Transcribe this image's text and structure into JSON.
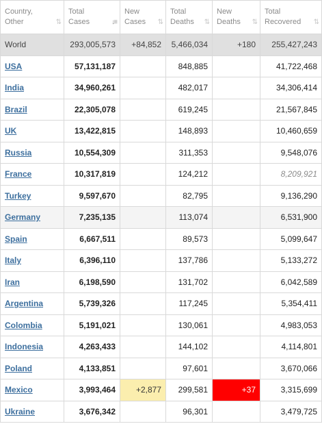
{
  "headers": [
    {
      "line1": "Country,",
      "line2": "Other"
    },
    {
      "line1": "Total",
      "line2": "Cases"
    },
    {
      "line1": "New",
      "line2": "Cases"
    },
    {
      "line1": "Total",
      "line2": "Deaths"
    },
    {
      "line1": "New",
      "line2": "Deaths"
    },
    {
      "line1": "Total",
      "line2": "Recovered"
    }
  ],
  "world": {
    "country": "World",
    "total_cases": "293,005,573",
    "new_cases": "+84,852",
    "total_deaths": "5,466,034",
    "new_deaths": "+180",
    "total_recovered": "255,427,243"
  },
  "rows": [
    {
      "country": "USA",
      "total_cases": "57,131,187",
      "new_cases": "",
      "total_deaths": "848,885",
      "new_deaths": "",
      "total_recovered": "41,722,468"
    },
    {
      "country": "India",
      "total_cases": "34,960,261",
      "new_cases": "",
      "total_deaths": "482,017",
      "new_deaths": "",
      "total_recovered": "34,306,414"
    },
    {
      "country": "Brazil",
      "total_cases": "22,305,078",
      "new_cases": "",
      "total_deaths": "619,245",
      "new_deaths": "",
      "total_recovered": "21,567,845"
    },
    {
      "country": "UK",
      "total_cases": "13,422,815",
      "new_cases": "",
      "total_deaths": "148,893",
      "new_deaths": "",
      "total_recovered": "10,460,659"
    },
    {
      "country": "Russia",
      "total_cases": "10,554,309",
      "new_cases": "",
      "total_deaths": "311,353",
      "new_deaths": "",
      "total_recovered": "9,548,076"
    },
    {
      "country": "France",
      "total_cases": "10,317,819",
      "new_cases": "",
      "total_deaths": "124,212",
      "new_deaths": "",
      "total_recovered": "8,209,921"
    },
    {
      "country": "Turkey",
      "total_cases": "9,597,670",
      "new_cases": "",
      "total_deaths": "82,795",
      "new_deaths": "",
      "total_recovered": "9,136,290"
    },
    {
      "country": "Germany",
      "total_cases": "7,235,135",
      "new_cases": "",
      "total_deaths": "113,074",
      "new_deaths": "",
      "total_recovered": "6,531,900"
    },
    {
      "country": "Spain",
      "total_cases": "6,667,511",
      "new_cases": "",
      "total_deaths": "89,573",
      "new_deaths": "",
      "total_recovered": "5,099,647"
    },
    {
      "country": "Italy",
      "total_cases": "6,396,110",
      "new_cases": "",
      "total_deaths": "137,786",
      "new_deaths": "",
      "total_recovered": "5,133,272"
    },
    {
      "country": "Iran",
      "total_cases": "6,198,590",
      "new_cases": "",
      "total_deaths": "131,702",
      "new_deaths": "",
      "total_recovered": "6,042,589"
    },
    {
      "country": "Argentina",
      "total_cases": "5,739,326",
      "new_cases": "",
      "total_deaths": "117,245",
      "new_deaths": "",
      "total_recovered": "5,354,411"
    },
    {
      "country": "Colombia",
      "total_cases": "5,191,021",
      "new_cases": "",
      "total_deaths": "130,061",
      "new_deaths": "",
      "total_recovered": "4,983,053"
    },
    {
      "country": "Indonesia",
      "total_cases": "4,263,433",
      "new_cases": "",
      "total_deaths": "144,102",
      "new_deaths": "",
      "total_recovered": "4,114,801"
    },
    {
      "country": "Poland",
      "total_cases": "4,133,851",
      "new_cases": "",
      "total_deaths": "97,601",
      "new_deaths": "",
      "total_recovered": "3,670,066"
    },
    {
      "country": "Mexico",
      "total_cases": "3,993,464",
      "new_cases": "+2,877",
      "total_deaths": "299,581",
      "new_deaths": "+37",
      "total_recovered": "3,315,699"
    },
    {
      "country": "Ukraine",
      "total_cases": "3,676,342",
      "new_cases": "",
      "total_deaths": "96,301",
      "new_deaths": "",
      "total_recovered": "3,479,725"
    }
  ],
  "colors": {
    "new_cases_highlight": "#fbeeae",
    "new_deaths_highlight": "#ff0000",
    "link": "#3d6f9e",
    "world_row": "#e0e0e0"
  }
}
